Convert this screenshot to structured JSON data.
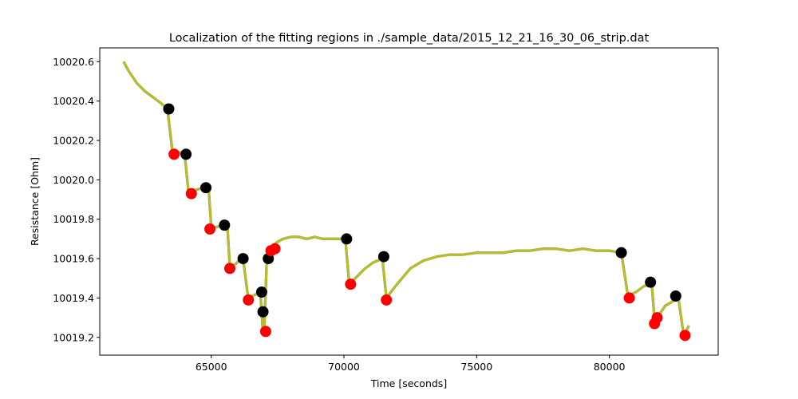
{
  "chart_data": {
    "type": "line",
    "title": "Localization of the fitting regions in ./sample_data/2015_12_21_16_30_06_strip.dat",
    "xlabel": "Time [seconds]",
    "ylabel": "Resistance [Ohm]",
    "xlim": [
      60800,
      84100
    ],
    "ylim": [
      10019.11,
      10020.67
    ],
    "xticks": [
      65000,
      70000,
      75000,
      80000
    ],
    "yticks": [
      10019.2,
      10019.4,
      10019.6,
      10019.8,
      10020.0,
      10020.2,
      10020.4,
      10020.6
    ],
    "grid": false,
    "legend": "none",
    "colors": {
      "raw": "#1f77b4",
      "fit": "#bcbd22",
      "start": "#ff0000",
      "end": "#000000"
    },
    "series": [
      {
        "role": "raw",
        "x": [
          61700,
          61900,
          62200,
          62500,
          62800,
          63100,
          63350,
          63550,
          63650,
          63800,
          64000,
          64150,
          64250,
          64450,
          64700,
          64900,
          65000,
          65200,
          65400,
          65600,
          65700,
          65900,
          66050,
          66200,
          66400,
          66550,
          66700,
          66850,
          66950,
          67000,
          67100,
          67250,
          67450,
          67700,
          68000,
          68300,
          68600,
          68900,
          69200,
          69500,
          69800,
          70050,
          70200,
          70500,
          70800,
          71100,
          71450,
          71600,
          72000,
          72500,
          73000,
          73500,
          74000,
          74500,
          75000,
          75500,
          76000,
          76500,
          77000,
          77500,
          78000,
          78500,
          79000,
          79500,
          80000,
          80450,
          80700,
          81000,
          81300,
          81600,
          81700,
          81900,
          82100,
          82350,
          82600,
          82800,
          83000
        ],
        "y": [
          10020.6,
          10020.55,
          10020.49,
          10020.45,
          10020.42,
          10020.39,
          10020.36,
          10020.13,
          10020.14,
          10020.14,
          10020.13,
          10019.93,
          10019.94,
          10019.95,
          10019.96,
          10019.96,
          10019.76,
          10019.76,
          10019.77,
          10019.78,
          10019.56,
          10019.57,
          10019.59,
          10019.6,
          10019.39,
          10019.41,
          10019.42,
          10019.43,
          10019.22,
          10019.24,
          10019.62,
          10019.65,
          10019.68,
          10019.7,
          10019.71,
          10019.71,
          10019.7,
          10019.71,
          10019.7,
          10019.7,
          10019.7,
          10019.7,
          10019.47,
          10019.51,
          10019.55,
          10019.58,
          10019.6,
          10019.4,
          10019.47,
          10019.55,
          10019.59,
          10019.61,
          10019.62,
          10019.62,
          10019.63,
          10019.63,
          10019.63,
          10019.64,
          10019.64,
          10019.65,
          10019.65,
          10019.64,
          10019.65,
          10019.64,
          10019.64,
          10019.63,
          10019.41,
          10019.43,
          10019.46,
          10019.47,
          10019.29,
          10019.32,
          10019.36,
          10019.38,
          10019.4,
          10019.21,
          10019.26
        ]
      },
      {
        "role": "fit",
        "x": [
          61700,
          61900,
          62200,
          62500,
          62800,
          63100,
          63350,
          63550,
          63650,
          63800,
          64000,
          64150,
          64250,
          64450,
          64700,
          64900,
          65000,
          65200,
          65400,
          65600,
          65700,
          65900,
          66050,
          66200,
          66400,
          66550,
          66700,
          66850,
          66950,
          67000,
          67100,
          67250,
          67450,
          67700,
          68000,
          68300,
          68600,
          68900,
          69200,
          69500,
          69800,
          70050,
          70200,
          70500,
          70800,
          71100,
          71450,
          71600,
          72000,
          72500,
          73000,
          73500,
          74000,
          74500,
          75000,
          75500,
          76000,
          76500,
          77000,
          77500,
          78000,
          78500,
          79000,
          79500,
          80000,
          80450,
          80700,
          81000,
          81300,
          81600,
          81700,
          81900,
          82100,
          82350,
          82600,
          82800,
          83000
        ],
        "y": [
          10020.6,
          10020.55,
          10020.49,
          10020.45,
          10020.42,
          10020.39,
          10020.36,
          10020.13,
          10020.14,
          10020.14,
          10020.13,
          10019.93,
          10019.94,
          10019.95,
          10019.96,
          10019.96,
          10019.76,
          10019.76,
          10019.77,
          10019.78,
          10019.56,
          10019.57,
          10019.59,
          10019.6,
          10019.39,
          10019.41,
          10019.42,
          10019.43,
          10019.22,
          10019.24,
          10019.62,
          10019.65,
          10019.68,
          10019.7,
          10019.71,
          10019.71,
          10019.7,
          10019.71,
          10019.7,
          10019.7,
          10019.7,
          10019.7,
          10019.47,
          10019.51,
          10019.55,
          10019.58,
          10019.6,
          10019.4,
          10019.47,
          10019.55,
          10019.59,
          10019.61,
          10019.62,
          10019.62,
          10019.63,
          10019.63,
          10019.63,
          10019.64,
          10019.64,
          10019.65,
          10019.65,
          10019.64,
          10019.65,
          10019.64,
          10019.64,
          10019.63,
          10019.41,
          10019.43,
          10019.46,
          10019.47,
          10019.29,
          10019.32,
          10019.36,
          10019.38,
          10019.4,
          10019.21,
          10019.26
        ]
      },
      {
        "role": "start",
        "x": [
          63600,
          64250,
          64950,
          65700,
          66400,
          67050,
          67250,
          67400,
          70250,
          71600,
          80750,
          81700,
          81800,
          82850
        ],
        "y": [
          10020.13,
          10019.93,
          10019.75,
          10019.55,
          10019.39,
          10019.23,
          10019.64,
          10019.65,
          10019.47,
          10019.39,
          10019.4,
          10019.27,
          10019.3,
          10019.21
        ]
      },
      {
        "role": "end",
        "x": [
          63400,
          64050,
          64800,
          65500,
          66200,
          66900,
          66950,
          67150,
          70100,
          71500,
          80450,
          81550,
          82500
        ],
        "y": [
          10020.36,
          10020.13,
          10019.96,
          10019.77,
          10019.6,
          10019.43,
          10019.33,
          10019.6,
          10019.7,
          10019.61,
          10019.63,
          10019.48,
          10019.41
        ]
      }
    ]
  }
}
